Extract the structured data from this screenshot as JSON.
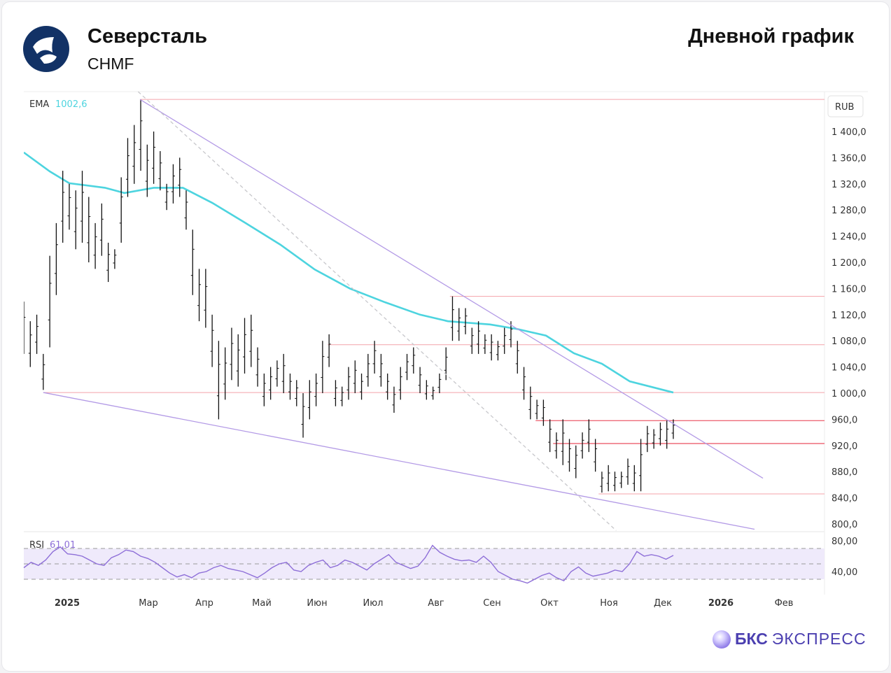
{
  "header": {
    "title": "Северсталь",
    "ticker": "CHMF",
    "chart_kind": "Дневной график"
  },
  "brand": {
    "name_bold": "БКС",
    "name_rest": "ЭКСПРЕСС"
  },
  "colors": {
    "bars": "#111111",
    "ema": "#4dd4df",
    "levels": "#f4a3aa",
    "level_strong": "#ee6d7a",
    "trend": "#b39ae6",
    "rsi": "#8e6fd8",
    "rsi_band": "#efeafb"
  },
  "chart_data": {
    "type": "ohlc-bar",
    "currency": "RUB",
    "ylim": [
      800,
      1460
    ],
    "y_ticks": [
      "1 400,0",
      "1 360,0",
      "1 320,0",
      "1 280,0",
      "1 240,0",
      "1 200,0",
      "1 160,0",
      "1 120,0",
      "1 080,0",
      "1 040,0",
      "1 000,0",
      "960,0",
      "920,0",
      "880,0",
      "840,0",
      "800,0"
    ],
    "y_tick_values": [
      1400,
      1360,
      1320,
      1280,
      1240,
      1200,
      1160,
      1120,
      1080,
      1040,
      1000,
      960,
      920,
      880,
      840,
      800
    ],
    "x_ticks": [
      "2025",
      "Мар",
      "Апр",
      "Май",
      "Июн",
      "Июл",
      "Авг",
      "Сен",
      "Окт",
      "Ноя",
      "Дек",
      "2026",
      "Фев"
    ],
    "ema": {
      "label": "EMA",
      "value": "1002,6",
      "points": [
        [
          0,
          1368
        ],
        [
          4,
          1339
        ],
        [
          7,
          1321
        ],
        [
          12.5,
          1314
        ],
        [
          15.5,
          1306
        ],
        [
          20,
          1314
        ],
        [
          24.5,
          1314
        ],
        [
          29,
          1291
        ],
        [
          34,
          1261
        ],
        [
          39.5,
          1227
        ],
        [
          44.8,
          1189
        ],
        [
          50.2,
          1160
        ],
        [
          55.6,
          1139
        ],
        [
          61,
          1120
        ],
        [
          65.3,
          1110
        ],
        [
          71.8,
          1105
        ],
        [
          76,
          1098
        ],
        [
          80.4,
          1088
        ],
        [
          84.7,
          1061
        ],
        [
          89,
          1045
        ],
        [
          93.3,
          1018
        ],
        [
          100,
          1001
        ]
      ]
    },
    "bars_high_low": [
      [
        1140,
        1060
      ],
      [
        1110,
        1040
      ],
      [
        1120,
        1060
      ],
      [
        1060,
        1005
      ],
      [
        1210,
        1070
      ],
      [
        1260,
        1150
      ],
      [
        1340,
        1230
      ],
      [
        1320,
        1250
      ],
      [
        1310,
        1220
      ],
      [
        1340,
        1230
      ],
      [
        1300,
        1200
      ],
      [
        1260,
        1190
      ],
      [
        1290,
        1210
      ],
      [
        1230,
        1170
      ],
      [
        1220,
        1190
      ],
      [
        1330,
        1230
      ],
      [
        1390,
        1300
      ],
      [
        1410,
        1320
      ],
      [
        1449,
        1340
      ],
      [
        1380,
        1300
      ],
      [
        1400,
        1320
      ],
      [
        1370,
        1310
      ],
      [
        1320,
        1280
      ],
      [
        1350,
        1290
      ],
      [
        1360,
        1300
      ],
      [
        1310,
        1250
      ],
      [
        1250,
        1150
      ],
      [
        1190,
        1110
      ],
      [
        1190,
        1100
      ],
      [
        1120,
        1040
      ],
      [
        1080,
        960
      ],
      [
        1070,
        990
      ],
      [
        1100,
        1020
      ],
      [
        1090,
        1010
      ],
      [
        1115,
        1030
      ],
      [
        1120,
        1040
      ],
      [
        1070,
        1010
      ],
      [
        1030,
        980
      ],
      [
        1040,
        990
      ],
      [
        1050,
        1010
      ],
      [
        1060,
        1000
      ],
      [
        1030,
        990
      ],
      [
        1020,
        980
      ],
      [
        1000,
        932
      ],
      [
        1020,
        960
      ],
      [
        1030,
        980
      ],
      [
        1080,
        1000
      ],
      [
        1090,
        1040
      ],
      [
        1020,
        980
      ],
      [
        1010,
        980
      ],
      [
        1040,
        990
      ],
      [
        1050,
        1000
      ],
      [
        1030,
        990
      ],
      [
        1060,
        1010
      ],
      [
        1080,
        1030
      ],
      [
        1060,
        1010
      ],
      [
        1030,
        990
      ],
      [
        1010,
        970
      ],
      [
        1040,
        990
      ],
      [
        1060,
        1020
      ],
      [
        1070,
        1030
      ],
      [
        1040,
        1000
      ],
      [
        1020,
        990
      ],
      [
        1010,
        990
      ],
      [
        1030,
        1000
      ],
      [
        1070,
        1020
      ],
      [
        1148,
        1080
      ],
      [
        1130,
        1080
      ],
      [
        1130,
        1090
      ],
      [
        1100,
        1060
      ],
      [
        1110,
        1060
      ],
      [
        1090,
        1060
      ],
      [
        1090,
        1050
      ],
      [
        1080,
        1050
      ],
      [
        1100,
        1060
      ],
      [
        1110,
        1070
      ],
      [
        1080,
        1030
      ],
      [
        1040,
        990
      ],
      [
        1010,
        960
      ],
      [
        990,
        960
      ],
      [
        990,
        950
      ],
      [
        960,
        910
      ],
      [
        940,
        900
      ],
      [
        960,
        890
      ],
      [
        930,
        880
      ],
      [
        920,
        870
      ],
      [
        940,
        900
      ],
      [
        960,
        910
      ],
      [
        930,
        880
      ],
      [
        880,
        848
      ],
      [
        890,
        850
      ],
      [
        880,
        850
      ],
      [
        880,
        855
      ],
      [
        900,
        860
      ],
      [
        890,
        850
      ],
      [
        930,
        850
      ],
      [
        950,
        910
      ],
      [
        945,
        915
      ],
      [
        955,
        920
      ],
      [
        958,
        915
      ],
      [
        960,
        930
      ]
    ],
    "levels": [
      {
        "price": 1449,
        "from": 17.9
      },
      {
        "price": 1148,
        "from": 65.6
      },
      {
        "price": 1074,
        "from": 46.8
      },
      {
        "price": 1001,
        "from": 3
      },
      {
        "price": 958,
        "from": 78.8,
        "strong": true
      },
      {
        "price": 923,
        "from": 81.5,
        "strong": true
      },
      {
        "price": 846,
        "from": 88.5
      }
    ],
    "trendlines": [
      {
        "from": [
          17.9,
          1449
        ],
        "to": [
          113.8,
          870
        ]
      },
      {
        "from": [
          3,
          1001
        ],
        "to": [
          112.5,
          792
        ]
      },
      {
        "from": [
          17.6,
          1461
        ],
        "to": [
          91.2,
          790
        ],
        "dashed": true
      }
    ],
    "rsi": {
      "label": "RSI",
      "value": "61,01",
      "ylim": [
        20,
        84
      ],
      "ticks": [
        "80,00",
        "40,00"
      ],
      "tick_values": [
        80,
        40
      ],
      "bands": [
        70,
        50,
        30
      ],
      "values": [
        45,
        52,
        48,
        55,
        66,
        72,
        63,
        62,
        60,
        55,
        50,
        48,
        58,
        62,
        68,
        66,
        60,
        57,
        52,
        45,
        38,
        33,
        36,
        32,
        38,
        40,
        45,
        48,
        44,
        42,
        40,
        36,
        32,
        38,
        45,
        50,
        52,
        42,
        40,
        48,
        52,
        55,
        45,
        48,
        55,
        52,
        47,
        42,
        50,
        56,
        62,
        52,
        48,
        44,
        47,
        58,
        74,
        65,
        60,
        56,
        54,
        55,
        52,
        60,
        52,
        40,
        35,
        30,
        28,
        25,
        30,
        35,
        38,
        32,
        28,
        40,
        46,
        38,
        34,
        36,
        38,
        42,
        40,
        50,
        66,
        60,
        62,
        60,
        56,
        61
      ]
    }
  }
}
